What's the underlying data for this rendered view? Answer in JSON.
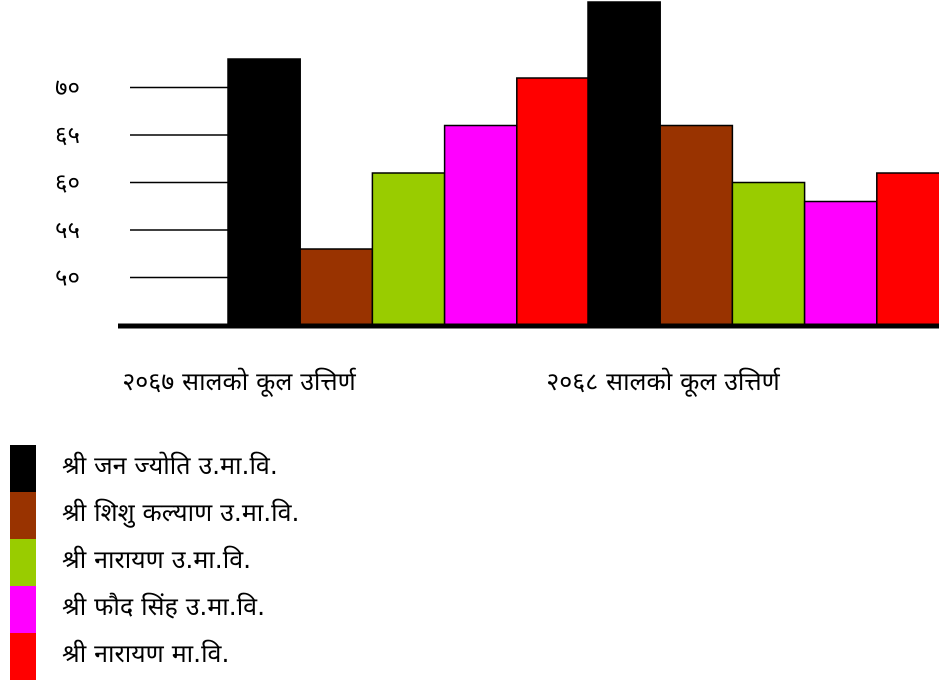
{
  "chart_data": {
    "type": "bar",
    "categories": [
      "२०६७ सालको कूल उत्तिर्ण",
      "२०६८ सालको कूल उत्तिर्ण"
    ],
    "y_ticks": [
      {
        "value": 50,
        "label": "५०"
      },
      {
        "value": 55,
        "label": "५५"
      },
      {
        "value": 60,
        "label": "६०"
      },
      {
        "value": 65,
        "label": "६५"
      },
      {
        "value": 70,
        "label": "७०"
      }
    ],
    "series": [
      {
        "name": "श्री जन ज्योति उ.मा.वि.",
        "color": "#000000",
        "values": [
          73,
          79
        ]
      },
      {
        "name": "श्री शिशु कल्याण उ.मा.वि.",
        "color": "#993300",
        "values": [
          53,
          66
        ]
      },
      {
        "name": "श्री नारायण उ.मा.वि.",
        "color": "#99CC00",
        "values": [
          61,
          60
        ]
      },
      {
        "name": "श्री फौद सिंह उ.मा.वि.",
        "color": "#FF00FF",
        "values": [
          66,
          58
        ]
      },
      {
        "name": "श्री नारायण मा.वि.",
        "color": "#FF0000",
        "values": [
          71,
          61
        ]
      }
    ]
  }
}
